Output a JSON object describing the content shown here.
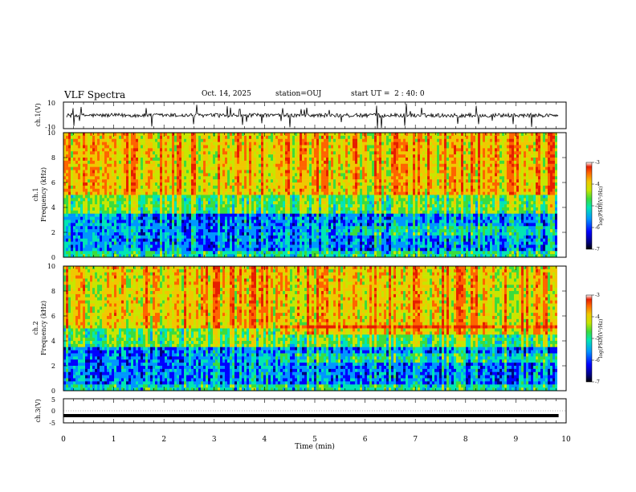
{
  "header": {
    "title": "VLF Spectra",
    "date": "Oct. 14, 2025",
    "station": "station=OUJ",
    "start_ut": "start UT =  2 : 40: 0"
  },
  "colors": {
    "colormap": [
      "#000080",
      "#0000ff",
      "#0096ff",
      "#00e6b4",
      "#3cdc3c",
      "#c8e600",
      "#f0c800",
      "#ff6400",
      "#e61e00",
      "#ffffff"
    ]
  },
  "chart_data": [
    {
      "type": "line",
      "panel": "ch1-waveform",
      "ylabel": "ch.1(V)",
      "ylim": [
        -10,
        10
      ],
      "yticks": [
        10,
        -10
      ],
      "xlim": [
        0,
        10
      ],
      "description_values": {
        "baseline": 0,
        "spike_max": 10,
        "spike_min": -10
      }
    },
    {
      "type": "heatmap",
      "panel": "ch1-spectrogram",
      "ylabel_line1": "ch.1",
      "ylabel_line2": "Frequency (kHz)",
      "ylim": [
        0,
        10
      ],
      "yticks": [
        0,
        2,
        4,
        6,
        8,
        10
      ],
      "xlim": [
        0,
        10
      ],
      "data_end_min": 9.85,
      "colorbar": {
        "label": "log(PSD)(V²/Hz)",
        "range": [
          -7,
          -3
        ],
        "ticks": [
          -3,
          -4,
          -5,
          -6,
          -7
        ]
      }
    },
    {
      "type": "heatmap",
      "panel": "ch2-spectrogram",
      "ylabel_line1": "ch.2",
      "ylabel_line2": "Frequency (kHz)",
      "ylim": [
        0,
        10
      ],
      "yticks": [
        0,
        2,
        4,
        6,
        8,
        10
      ],
      "xlim": [
        0,
        10
      ],
      "data_end_min": 9.85,
      "colorbar": {
        "label": "log(PSD)(V²/Hz)",
        "range": [
          -7,
          -3
        ],
        "ticks": [
          -3,
          -4,
          -5,
          -6,
          -7
        ]
      }
    },
    {
      "type": "line",
      "panel": "ch3-waveform",
      "ylabel": "ch.3(V)",
      "ylim": [
        -5,
        5
      ],
      "yticks": [
        5,
        0,
        -5
      ],
      "xlim": [
        0,
        10
      ],
      "values_constant": -2
    }
  ],
  "xaxis": {
    "label": "Time (min)",
    "ticks": [
      0,
      1,
      2,
      3,
      4,
      5,
      6,
      7,
      8,
      9,
      10
    ]
  }
}
